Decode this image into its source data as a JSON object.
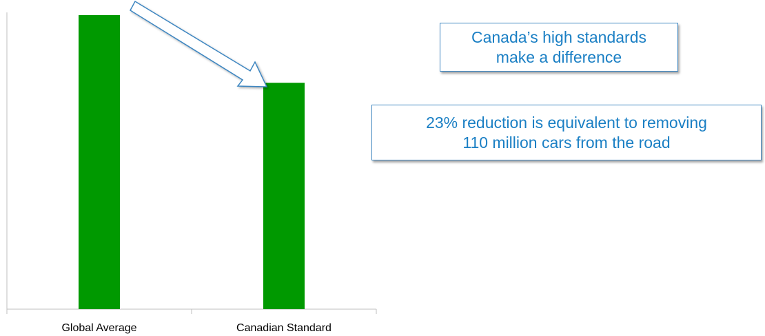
{
  "chart_data": {
    "type": "bar",
    "categories": [
      "Global Average",
      "Canadian Standard"
    ],
    "values": [
      100,
      77
    ],
    "title": "",
    "xlabel": "",
    "ylabel": "",
    "ylim": [
      0,
      100
    ],
    "grid": false,
    "bar_color": "#009900",
    "axis_color": "#bfbfbf"
  },
  "callouts": {
    "standards": {
      "line1": "Canada’s high standards",
      "line2": "make a difference"
    },
    "reduction": {
      "line1": "23% reduction is equivalent to removing",
      "line2": "110 million cars from the road"
    },
    "border_color": "#3d86c1",
    "text_color": "#1a7fc4"
  }
}
